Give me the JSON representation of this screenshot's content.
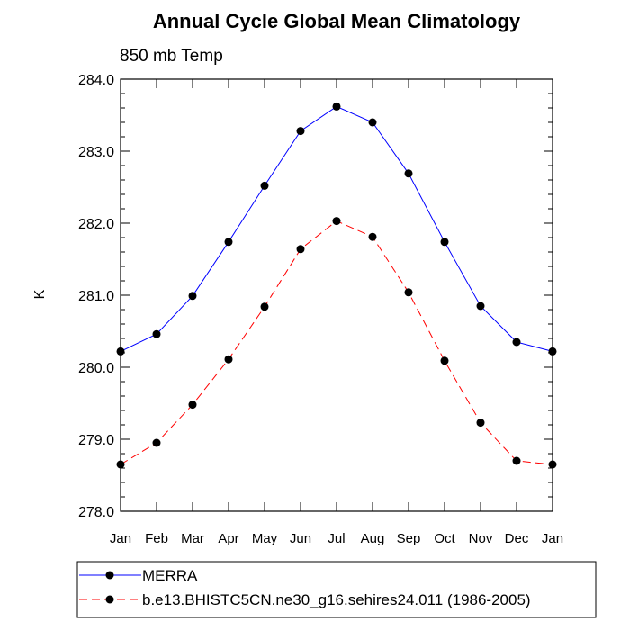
{
  "chart_data": {
    "type": "line",
    "title": "Annual Cycle Global Mean Climatology",
    "subtitle": "850 mb Temp",
    "xlabel": "",
    "ylabel": "K",
    "categories": [
      "Jan",
      "Feb",
      "Mar",
      "Apr",
      "May",
      "Jun",
      "Jul",
      "Aug",
      "Sep",
      "Oct",
      "Nov",
      "Dec",
      "Jan"
    ],
    "ylim": [
      278.0,
      284.0
    ],
    "yticks": [
      278.0,
      279.0,
      280.0,
      281.0,
      282.0,
      283.0,
      284.0
    ],
    "ytick_labels": [
      "278.0",
      "279.0",
      "280.0",
      "281.0",
      "282.0",
      "283.0",
      "284.0"
    ],
    "grid": false,
    "legend_position": "bottom",
    "series": [
      {
        "name": "MERRA",
        "color": "#0000ff",
        "line_style": "solid",
        "marker": "filled-circle",
        "values": [
          280.22,
          280.46,
          280.99,
          281.74,
          282.52,
          283.28,
          283.62,
          283.4,
          282.69,
          281.74,
          280.85,
          280.35,
          280.22
        ]
      },
      {
        "name": "b.e13.BHISTC5CN.ne30_g16.sehires24.011 (1986-2005)",
        "color": "#ff0000",
        "line_style": "dashed",
        "marker": "filled-circle",
        "values": [
          278.65,
          278.95,
          279.48,
          280.11,
          280.84,
          281.64,
          282.03,
          281.81,
          281.04,
          280.09,
          279.23,
          278.7,
          278.65
        ]
      }
    ]
  }
}
